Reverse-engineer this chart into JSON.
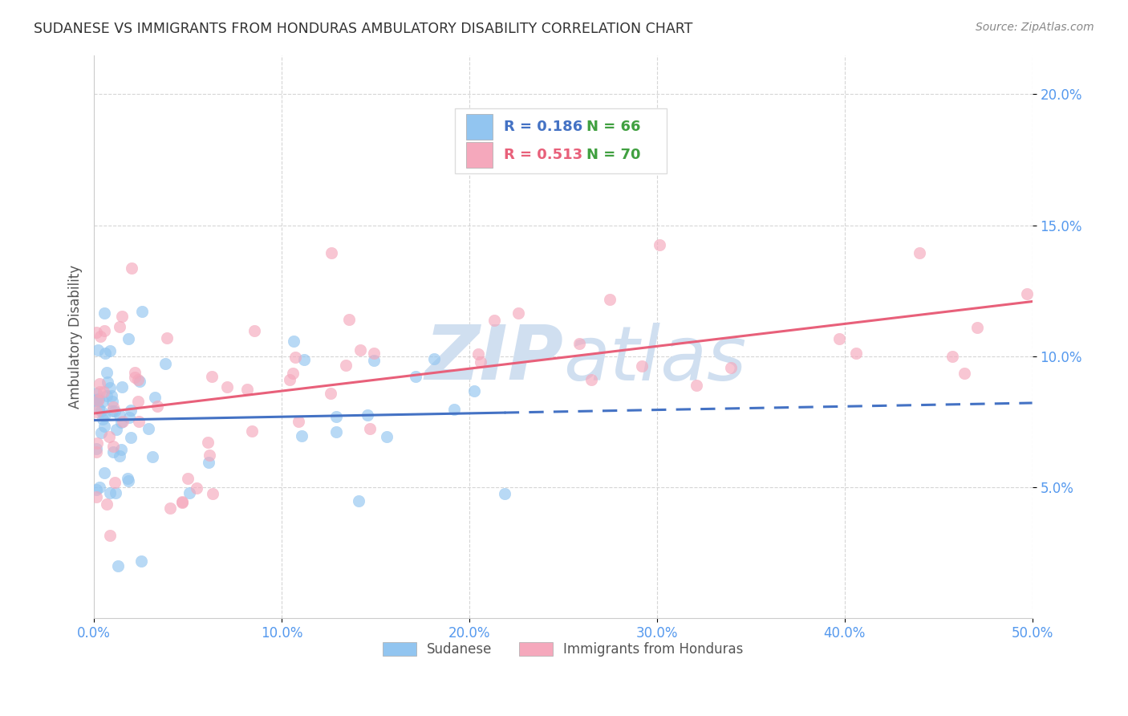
{
  "title": "SUDANESE VS IMMIGRANTS FROM HONDURAS AMBULATORY DISABILITY CORRELATION CHART",
  "source": "Source: ZipAtlas.com",
  "ylabel": "Ambulatory Disability",
  "xlim": [
    0.0,
    0.5
  ],
  "ylim": [
    0.0,
    0.215
  ],
  "xticks": [
    0.0,
    0.1,
    0.2,
    0.3,
    0.4,
    0.5
  ],
  "yticks": [
    0.05,
    0.1,
    0.15,
    0.2
  ],
  "xticklabels": [
    "0.0%",
    "10.0%",
    "20.0%",
    "30.0%",
    "40.0%",
    "50.0%"
  ],
  "yticklabels": [
    "5.0%",
    "10.0%",
    "15.0%",
    "20.0%"
  ],
  "sudanese_R": 0.186,
  "sudanese_N": 66,
  "honduras_R": 0.513,
  "honduras_N": 70,
  "sudanese_color": "#92C5F0",
  "honduras_color": "#F5A8BC",
  "sudanese_line_color": "#4472C4",
  "honduras_line_color": "#E8607A",
  "background_color": "#ffffff",
  "grid_color": "#cccccc",
  "watermark_color": "#D0DFF0",
  "legend_R_color_sudanese": "#4472C4",
  "legend_R_color_honduras": "#E8607A",
  "legend_N_color": "#40A040",
  "tick_color": "#5599EE",
  "title_color": "#333333",
  "source_color": "#888888",
  "ylabel_color": "#555555"
}
